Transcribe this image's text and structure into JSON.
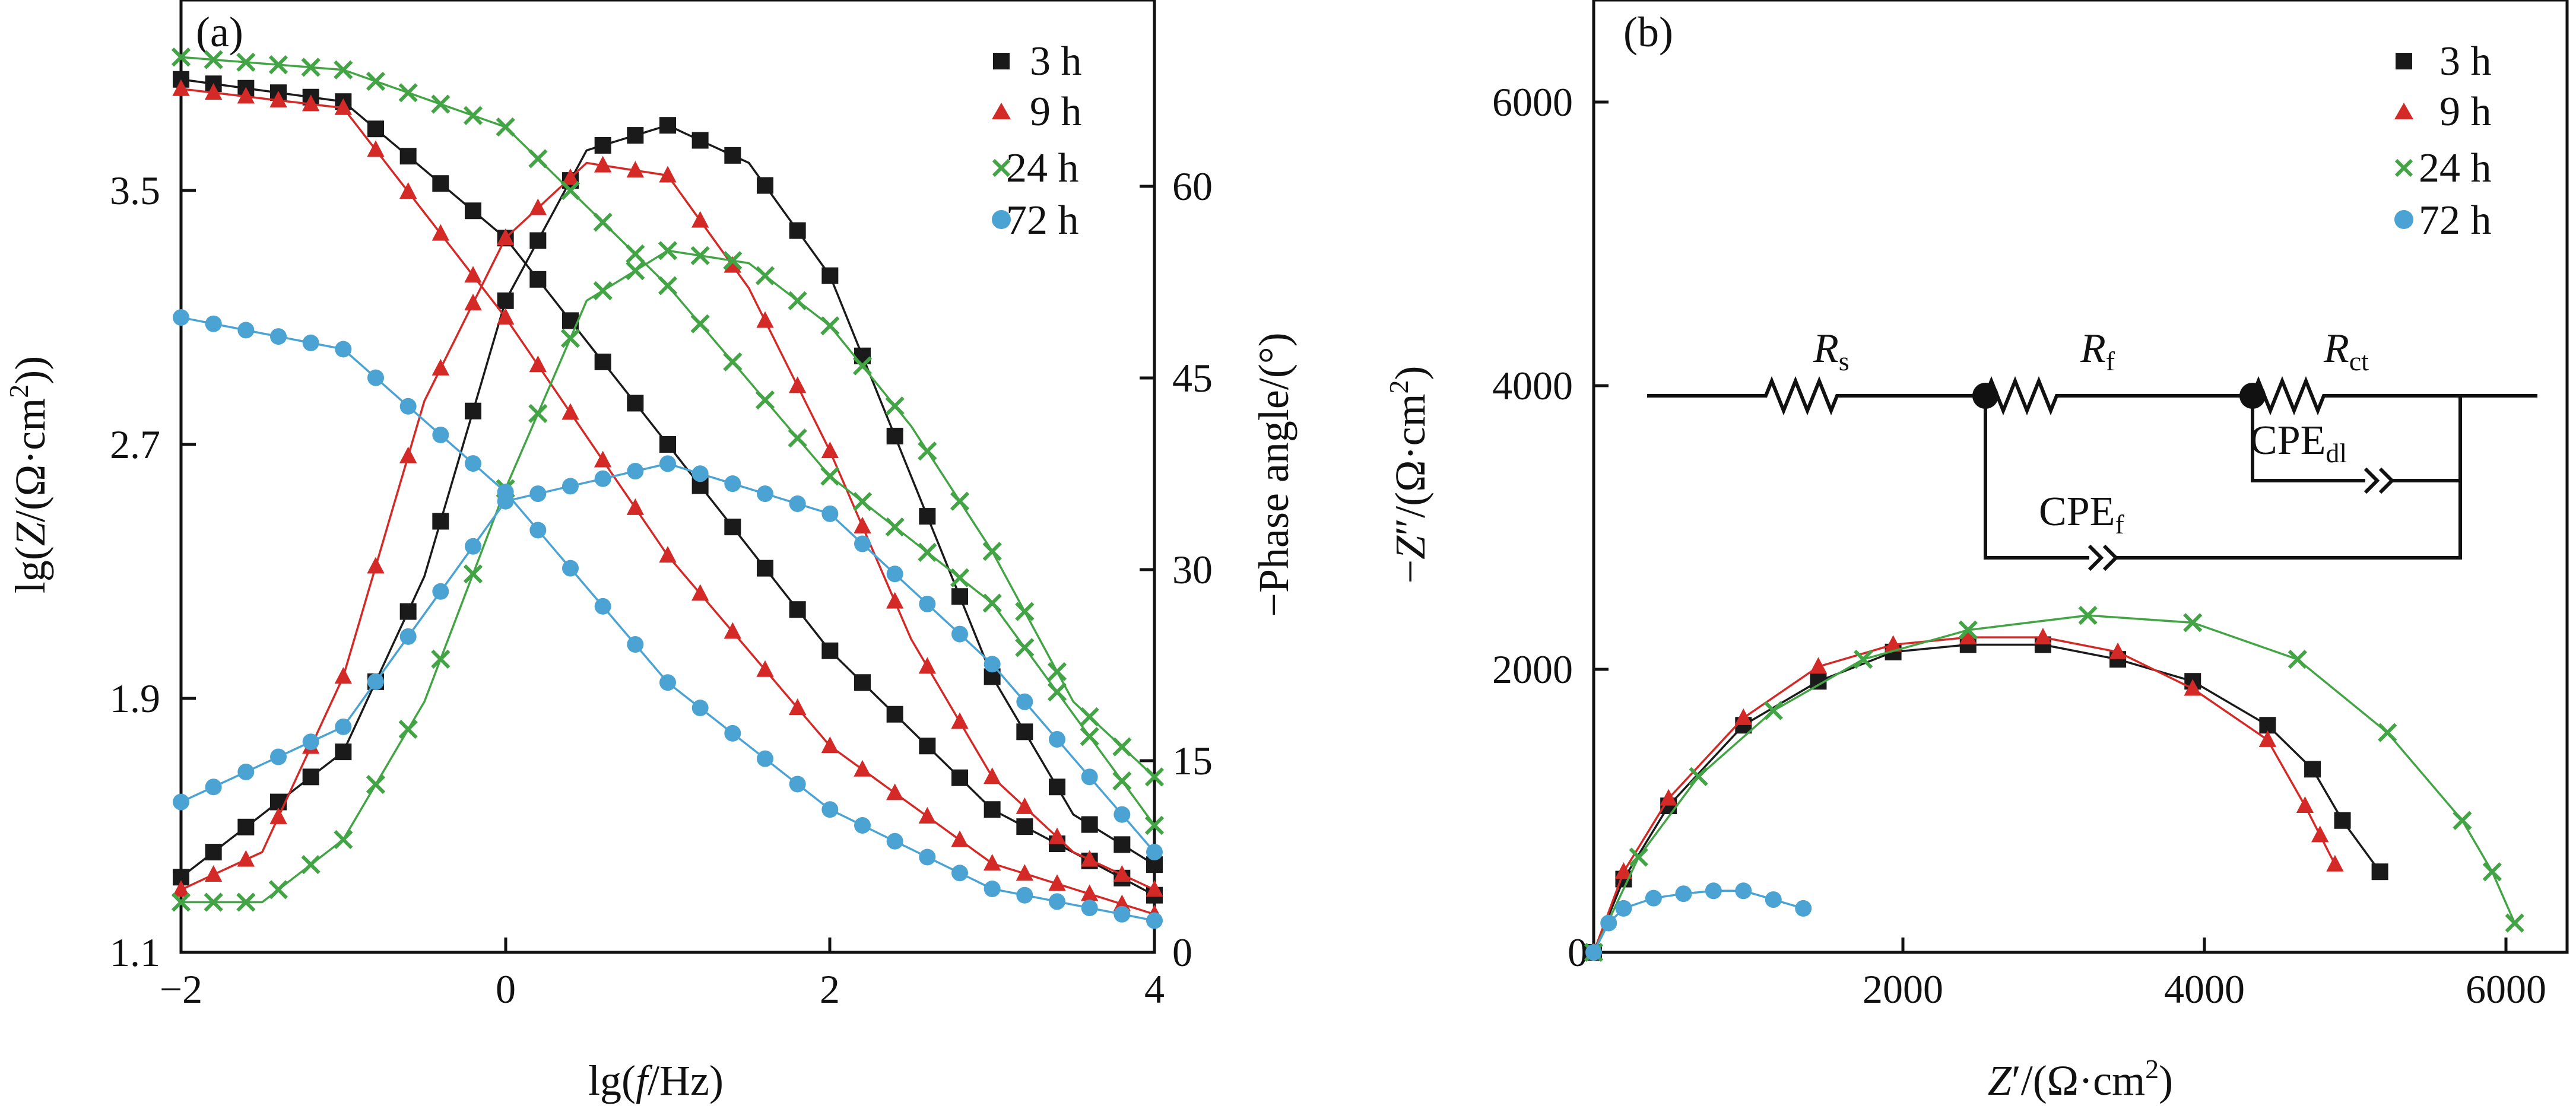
{
  "chart_data": [
    {
      "panel": "(a)",
      "type": "line+scatter",
      "xlabel": "lg(f/Hz)",
      "ylabel": "lg(Z/(Ω·cm²))",
      "y2label": "−Phase angle/(°)",
      "xlim": [
        -2,
        4
      ],
      "ylim": [
        1.1,
        4.1
      ],
      "y2lim": [
        0,
        76
      ],
      "xticks": [
        "−2",
        "0",
        "2",
        "4"
      ],
      "yticks": [
        "1.1",
        "1.9",
        "2.7",
        "3.5"
      ],
      "y2ticks": [
        "0",
        "15",
        "30",
        "45",
        "60"
      ],
      "legend": [
        "3 h",
        "9 h",
        "24 h",
        "72 h"
      ],
      "series": [
        {
          "name": "3 h",
          "color": "#1a1a1a",
          "marker": "square",
          "lgZ": {
            "x": [
              -2,
              -1,
              0,
              1,
              2,
              3,
              4
            ],
            "y": [
              3.85,
              3.78,
              3.35,
              2.7,
              2.05,
              1.55,
              1.28
            ]
          },
          "phase": {
            "x": [
              -2,
              -1,
              -0.5,
              0,
              0.5,
              1,
              1.5,
              2,
              2.5,
              3,
              3.5,
              4
            ],
            "y": [
              6,
              16,
              30,
              52,
              64,
              66,
              63,
              54,
              38,
              22,
              11,
              7
            ]
          }
        },
        {
          "name": "9 h",
          "color": "#d42a27",
          "marker": "triangle",
          "lgZ": {
            "x": [
              -2,
              -1,
              0,
              1,
              2,
              3,
              4
            ],
            "y": [
              3.82,
              3.76,
              3.1,
              2.35,
              1.75,
              1.38,
              1.22
            ]
          },
          "phase": {
            "x": [
              -2,
              -1.5,
              -1,
              -0.5,
              0,
              0.5,
              1,
              1.5,
              2,
              2.5,
              3,
              3.5,
              4
            ],
            "y": [
              5,
              8,
              22,
              44,
              57,
              63,
              62,
              53,
              40,
              25,
              14,
              8,
              5
            ]
          }
        },
        {
          "name": "24 h",
          "color": "#43a445",
          "marker": "cross",
          "lgZ": {
            "x": [
              -2,
              -1,
              0,
              1,
              2,
              3,
              4
            ],
            "y": [
              3.92,
              3.88,
              3.7,
              3.2,
              2.6,
              2.2,
              1.5
            ]
          },
          "phase": {
            "x": [
              -2,
              -1.5,
              -1,
              -0.5,
              0,
              0.5,
              1,
              1.5,
              2,
              2.5,
              3,
              3.5,
              4
            ],
            "y": [
              4,
              4,
              9,
              20,
              37,
              52,
              56,
              55,
              50,
              42,
              32,
              20,
              14
            ]
          }
        },
        {
          "name": "72 h",
          "color": "#4aa3d2",
          "marker": "circle",
          "lgZ": {
            "x": [
              -2,
              -1,
              0,
              1,
              2,
              3,
              4
            ],
            "y": [
              3.1,
              3.0,
              2.55,
              1.95,
              1.55,
              1.3,
              1.2
            ]
          },
          "phase": {
            "x": [
              -2,
              -1,
              0,
              1,
              2,
              3,
              4
            ],
            "y": [
              12,
              18,
              36,
              39,
              35,
              23,
              8
            ]
          }
        }
      ]
    },
    {
      "panel": "(b)",
      "type": "scatter+line",
      "xlabel": "Z′/(Ω·cm²)",
      "ylabel": "−Z″/(Ω·cm²)",
      "xlim": [
        0,
        6500
      ],
      "ylim": [
        0,
        6500
      ],
      "xticks": [
        "2000",
        "4000",
        "6000"
      ],
      "yticks": [
        "0",
        "2000",
        "4000",
        "6000"
      ],
      "legend": [
        "3 h",
        "9 h",
        "24 h",
        "72 h"
      ],
      "series": [
        {
          "name": "3 h",
          "color": "#1a1a1a",
          "marker": "square",
          "x": [
            0,
            200,
            500,
            1000,
            1500,
            2000,
            2500,
            3000,
            3500,
            4000,
            4500,
            4800,
            5000,
            5250
          ],
          "y": [
            0,
            500,
            1000,
            1550,
            1850,
            2050,
            2100,
            2100,
            2000,
            1850,
            1550,
            1250,
            900,
            550
          ]
        },
        {
          "name": "9 h",
          "color": "#d42a27",
          "marker": "triangle",
          "x": [
            0,
            200,
            500,
            1000,
            1500,
            2000,
            2500,
            3000,
            3500,
            4000,
            4500,
            4750,
            4850,
            4950
          ],
          "y": [
            0,
            550,
            1050,
            1600,
            1950,
            2100,
            2150,
            2150,
            2050,
            1800,
            1450,
            1000,
            800,
            600
          ]
        },
        {
          "name": "24 h",
          "color": "#43a445",
          "marker": "cross",
          "x": [
            0,
            300,
            700,
            1200,
            1800,
            2500,
            3300,
            4000,
            4700,
            5300,
            5800,
            6000,
            6150
          ],
          "y": [
            0,
            650,
            1200,
            1650,
            2000,
            2200,
            2300,
            2250,
            2000,
            1500,
            900,
            550,
            200
          ]
        },
        {
          "name": "72 h",
          "color": "#4aa3d2",
          "marker": "circle",
          "x": [
            0,
            100,
            200,
            400,
            600,
            800,
            1000,
            1200,
            1400
          ],
          "y": [
            0,
            200,
            300,
            370,
            400,
            420,
            420,
            360,
            300
          ]
        }
      ]
    }
  ],
  "circuit": {
    "labels": {
      "Rs_main": "R",
      "Rs_sub": "s",
      "Rf_main": "R",
      "Rf_sub": "f",
      "Rct_main": "R",
      "Rct_sub": "ct",
      "CPEdl_main": "CPE",
      "CPEdl_sub": "dl",
      "CPEf_main": "CPE",
      "CPEf_sub": "f"
    }
  }
}
